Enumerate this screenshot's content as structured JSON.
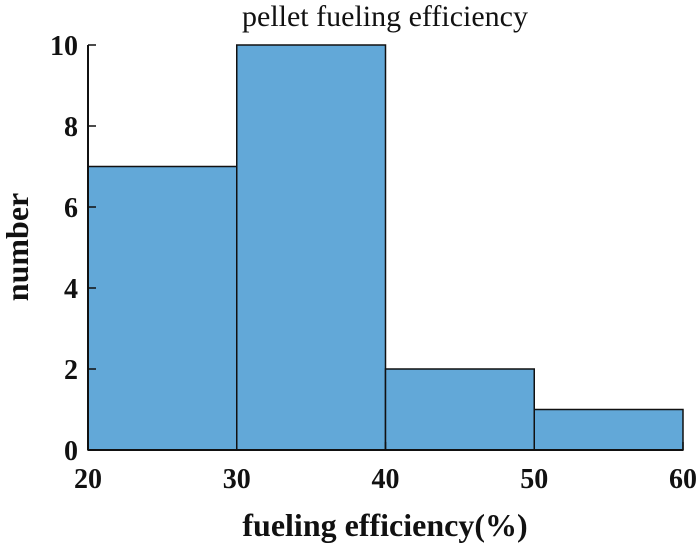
{
  "chart_data": {
    "type": "bar",
    "title": "pellet fueling efficiency",
    "xlabel": "fueling efficiency(%)",
    "ylabel": "number",
    "bins": [
      {
        "from": 20,
        "to": 30,
        "value": 7
      },
      {
        "from": 30,
        "to": 40,
        "value": 10
      },
      {
        "from": 40,
        "to": 50,
        "value": 2
      },
      {
        "from": 50,
        "to": 60,
        "value": 1
      }
    ],
    "xlim": [
      20,
      60
    ],
    "ylim": [
      0,
      10
    ],
    "xticks": [
      20,
      30,
      40,
      50,
      60
    ],
    "yticks": [
      0,
      2,
      4,
      6,
      8,
      10
    ],
    "bar_color": "#62a8d8",
    "grid": false
  }
}
